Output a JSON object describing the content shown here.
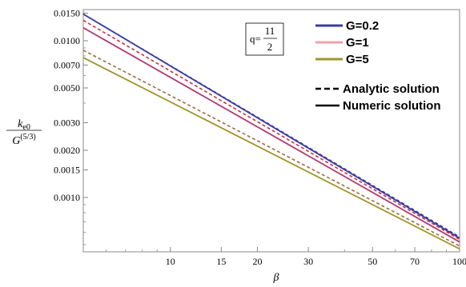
{
  "chart_data": {
    "type": "line",
    "x_scale": "log",
    "y_scale": "log",
    "xlabel": "β",
    "ylabel": {
      "numerator": "k",
      "numerator_sub": "e0",
      "denominator": "G",
      "denominator_sup": "(5/3)"
    },
    "xlim": [
      5,
      100
    ],
    "ylim": [
      0.00045,
      0.0158
    ],
    "x_ticks": [
      {
        "value": 10,
        "label": "10"
      },
      {
        "value": 15,
        "label": "15"
      },
      {
        "value": 20,
        "label": "20"
      },
      {
        "value": 30,
        "label": "30"
      },
      {
        "value": 50,
        "label": "50"
      },
      {
        "value": 70,
        "label": "70"
      },
      {
        "value": 100,
        "label": "100"
      }
    ],
    "y_ticks": [
      {
        "value": 0.001,
        "label": "0.0010"
      },
      {
        "value": 0.0015,
        "label": "0.0015"
      },
      {
        "value": 0.002,
        "label": "0.0020"
      },
      {
        "value": 0.003,
        "label": "0.0030"
      },
      {
        "value": 0.005,
        "label": "0.0050"
      },
      {
        "value": 0.007,
        "label": "0.0070"
      },
      {
        "value": 0.01,
        "label": "0.0100"
      },
      {
        "value": 0.015,
        "label": "0.0150"
      }
    ],
    "annotation": {
      "prefix": "q=",
      "numerator": "11",
      "denominator": "2"
    },
    "legend": {
      "position": "top-right",
      "color_entries": [
        {
          "label": "G=0.2",
          "color": "#3b3b9e"
        },
        {
          "label": "G=1",
          "color": "#f4a0a8"
        },
        {
          "label": "G=5",
          "color": "#a0952a"
        }
      ],
      "style_entries": [
        {
          "label": "Analytic solution",
          "dash": "dashed"
        },
        {
          "label": "Numeric solution",
          "dash": "solid"
        }
      ]
    },
    "series": [
      {
        "color": "#3b3b9e",
        "dash": "dashed",
        "x": [
          5,
          100
        ],
        "y": [
          0.0148,
          0.00056
        ]
      },
      {
        "color": "#3b3b9e",
        "dash": "solid",
        "x": [
          5,
          100
        ],
        "y": [
          0.0148,
          0.00055
        ]
      },
      {
        "color": "#d42a3c",
        "dash": "dashed",
        "x": [
          5,
          100
        ],
        "y": [
          0.0135,
          0.00054
        ]
      },
      {
        "color": "#b03a70",
        "dash": "solid",
        "x": [
          5,
          100
        ],
        "y": [
          0.0121,
          0.00052
        ]
      },
      {
        "color": "#a06a3a",
        "dash": "dashed",
        "x": [
          5,
          100
        ],
        "y": [
          0.0087,
          0.00049
        ]
      },
      {
        "color": "#a0952a",
        "dash": "solid",
        "x": [
          5,
          100
        ],
        "y": [
          0.0078,
          0.00047
        ]
      }
    ]
  }
}
